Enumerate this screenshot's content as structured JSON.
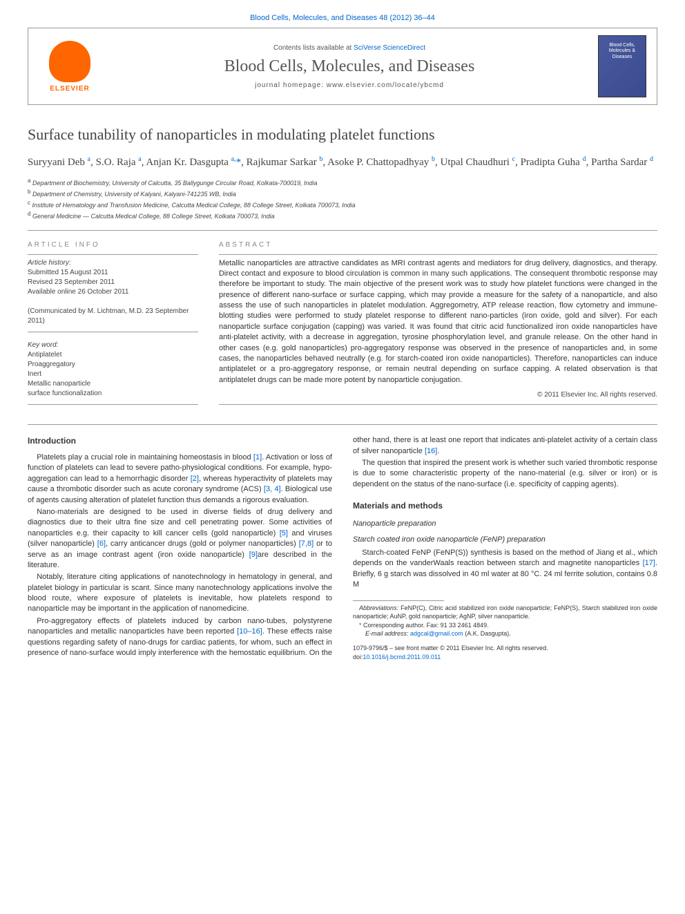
{
  "top_link": "Blood Cells, Molecules, and Diseases 48 (2012) 36–44",
  "header": {
    "contents_line_prefix": "Contents lists available at ",
    "contents_line_link": "SciVerse ScienceDirect",
    "journal_name": "Blood Cells, Molecules, and Diseases",
    "homepage_prefix": "journal homepage: ",
    "homepage_url": "www.elsevier.com/locate/ybcmd",
    "elsevier_label": "ELSEVIER",
    "cover_text": "Blood Cells, Molecules & Diseases"
  },
  "article": {
    "title": "Surface tunability of nanoparticles in modulating platelet functions",
    "authors_html": "Suryyani Deb <sup>a</sup>, S.O. Raja <sup>a</sup>, Anjan Kr. Dasgupta <sup>a,</sup><span class='star'>*</span>, Rajkumar Sarkar <sup>b</sup>, Asoke P. Chattopadhyay <sup>b</sup>, Utpal Chaudhuri <sup>c</sup>, Pradipta Guha <sup>d</sup>, Partha Sardar <sup>d</sup>",
    "affiliations": [
      {
        "sup": "a",
        "text": "Department of Biochemistry, University of Calcutta, 35 Ballygunge Circular Road, Kolkata-700019, India"
      },
      {
        "sup": "b",
        "text": "Department of Chemistry, University of Kalyani, Kalyani-741235 WB, India"
      },
      {
        "sup": "c",
        "text": "Institute of Hematology and Transfusion Medicine, Calcutta Medical College, 88 College Street, Kolkata 700073, India"
      },
      {
        "sup": "d",
        "text": "General Medicine — Calcutta Medical College, 88 College Street, Kolkata 700073, India"
      }
    ]
  },
  "article_info": {
    "label": "ARTICLE INFO",
    "history_label": "Article history:",
    "submitted": "Submitted 15 August 2011",
    "revised": "Revised 23 September 2011",
    "available": "Available online 26 October 2011",
    "communicated": "(Communicated by M. Lichtman, M.D. 23 September 2011)",
    "keywords_label": "Key word:",
    "keywords": [
      "Antiplatelet",
      "Proaggregatory",
      "Inert",
      "Metallic nanoparticle",
      "surface functionalization"
    ]
  },
  "abstract": {
    "label": "ABSTRACT",
    "text": "Metallic nanoparticles are attractive candidates as MRI contrast agents and mediators for drug delivery, diagnostics, and therapy. Direct contact and exposure to blood circulation is common in many such applications. The consequent thrombotic response may therefore be important to study. The main objective of the present work was to study how platelet functions were changed in the presence of different nano-surface or surface capping, which may provide a measure for the safety of a nanoparticle, and also assess the use of such nanoparticles in platelet modulation. Aggregometry, ATP release reaction, flow cytometry and immune-blotting studies were performed to study platelet response to different nano-particles (iron oxide, gold and silver). For each nanoparticle surface conjugation (capping) was varied. It was found that citric acid functionalized iron oxide nanoparticles have anti-platelet activity, with a decrease in aggregation, tyrosine phosphorylation level, and granule release. On the other hand in other cases (e.g. gold nanoparticles) pro-aggregatory response was observed in the presence of nanoparticles and, in some cases, the nanoparticles behaved neutrally (e.g. for starch-coated iron oxide nanoparticles). Therefore, nanoparticles can induce antiplatelet or a pro-aggregatory response, or remain neutral depending on surface capping. A related observation is that antiplatelet drugs can be made more potent by nanoparticle conjugation.",
    "copyright": "© 2011 Elsevier Inc. All rights reserved."
  },
  "sections": {
    "introduction": {
      "heading": "Introduction",
      "p1_pre": "Platelets play a crucial role in maintaining homeostasis in blood ",
      "p1_cite1": "[1]",
      "p1_mid1": ". Activation or loss of function of platelets can lead to severe patho-physiological conditions. For example, hypo-aggregation can lead to a hemorrhagic disorder ",
      "p1_cite2": "[2]",
      "p1_mid2": ", whereas hyperactivity of platelets may cause a thrombotic disorder such as acute coronary syndrome (ACS) ",
      "p1_cite3": "[3, 4]",
      "p1_post": ". Biological use of agents causing alteration of platelet function thus demands a rigorous evaluation.",
      "p2_pre": "Nano-materials are designed to be used in diverse fields of drug delivery and diagnostics due to their ultra fine size and cell penetrating power. Some activities of nanoparticles e.g. their capacity to kill cancer cells (gold nanoparticle) ",
      "p2_cite1": "[5]",
      "p2_mid1": " and viruses (silver nanoparticle) ",
      "p2_cite2": "[6]",
      "p2_mid2": ", carry anticancer drugs (gold or polymer nanoparticles) ",
      "p2_cite3": "[7,8]",
      "p2_mid3": " or to serve as an image contrast agent (iron oxide nanoparticle) ",
      "p2_cite4": "[9]",
      "p2_post": "are described in the literature.",
      "p3": "Notably, literature citing applications of nanotechnology in hematology in general, and platelet biology in particular is scant. Since many nanotechnology applications involve the blood route, where exposure of platelets is inevitable, how platelets respond to nanoparticle may be important in the application of nanomedicine.",
      "p4_pre": "Pro-aggregatory effects of platelets induced by carbon nano-tubes, polystyrene nanoparticles and metallic nanoparticles have been reported ",
      "p4_cite1": "[10–16]",
      "p4_mid": ". These effects raise questions regarding safety of nano-drugs for cardiac patients, for whom, such an effect in presence of nano-surface would imply interference with the hemostatic equilibrium. On the other hand, there is at least one report that indicates anti-platelet activity of a certain class of silver nanoparticle ",
      "p4_cite2": "[16]",
      "p4_post": ".",
      "p5": "The question that inspired the present work is whether such varied thrombotic response is due to some characteristic property of the nano-material (e.g. silver or iron) or is dependent on the status of the nano-surface (i.e. specificity of capping agents)."
    },
    "materials": {
      "heading": "Materials and methods",
      "sub1": "Nanoparticle preparation",
      "sub1_1": "Starch coated iron oxide nanoparticle (FeNP) preparation",
      "sub1_1_text_pre": "Starch-coated FeNP (FeNP(S)) synthesis is based on the method of Jiang et al., which depends on the vanderWaals reaction between starch and magnetite nanoparticles ",
      "sub1_1_cite": "[17]",
      "sub1_1_text_post": ". Briefly, 6 g starch was dissolved in 40 ml water at 80 °C. 24 ml ferrite solution, contains 0.8 M"
    }
  },
  "footnotes": {
    "abbrev_label": "Abbreviations:",
    "abbrev_text": " FeNP(C), Citric acid stabilized iron oxide nanoparticle; FeNP(S), Starch stabilized iron oxide nanoparticle; AuNP, gold nanoparticle; AgNP, silver nanoparticle.",
    "corresponding": "Corresponding author. Fax: 91 33 2461 4849.",
    "email_label": "E-mail address:",
    "email": "adgcal@gmail.com",
    "email_suffix": " (A.K. Dasgupta)."
  },
  "bottom_meta": {
    "line1": "1079-9796/$ – see front matter © 2011 Elsevier Inc. All rights reserved.",
    "line2_prefix": "doi:",
    "line2_link": "10.1016/j.bcmd.2011.09.011"
  },
  "colors": {
    "link": "#0066cc",
    "elsevier_orange": "#ff6600",
    "text": "#333333",
    "muted": "#555555",
    "cover_bg": "#4a5a9e"
  }
}
